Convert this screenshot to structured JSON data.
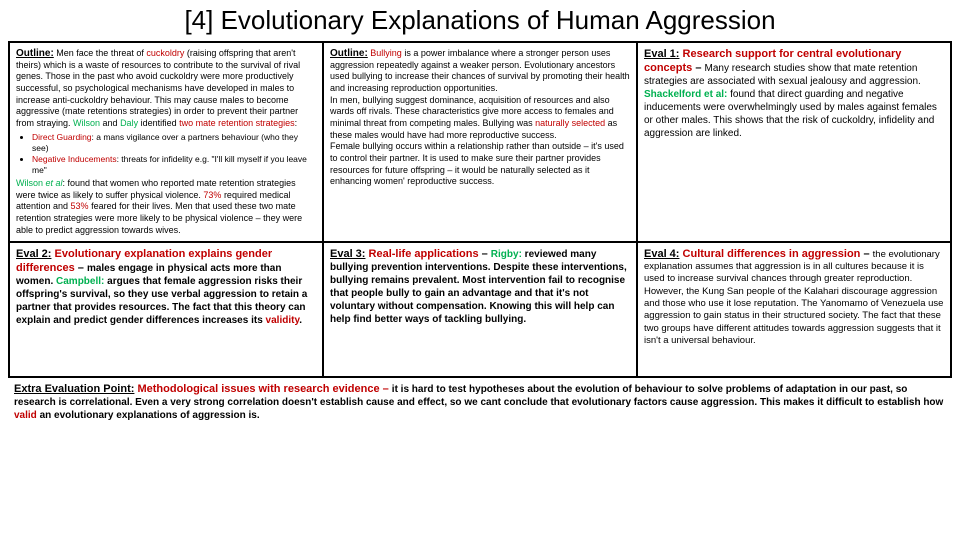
{
  "title": "[4] Evolutionary Explanations of Human Aggression",
  "cells": {
    "outline1": {
      "heading": "Outline:",
      "body_parts": [
        " Men face the threat of ",
        "cuckoldry",
        " (raising offspring that aren't theirs) which is a waste of resources to contribute to the survival of rival genes. Those in the past who avoid cuckoldry were more productively successful, so psychological mechanisms have developed in males to increase anti-cuckoldry behaviour. This may cause males to become aggressive (mate retentions strategies) in order to prevent their partner from straying. ",
        "Wilson",
        " and ",
        "Daly",
        " identified ",
        "two mate retention strategies",
        ":"
      ],
      "bullets": [
        {
          "term": "Direct Guarding",
          "rest": ": a mans vigilance over a partners behaviour (who they see)"
        },
        {
          "term": "Negative Inducements",
          "rest": ": threats for infidelity e.g. \"I'll kill myself if you leave me\""
        }
      ],
      "after_parts": [
        "Wilson ",
        "et al",
        ": found that women who reported mate retention strategies were twice as likely to suffer physical violence. ",
        "73%",
        " required medical attention and ",
        "53%",
        " feared for their lives. Men that used these two mate retention strategies were more likely to be physical violence – they were able to predict aggression towards wives."
      ]
    },
    "outline2": {
      "heading": "Outline:",
      "body_parts": [
        " ",
        "Bullying",
        " is a power imbalance where a stronger person uses aggression repeatedly against a weaker person. Evolutionary ancestors used bullying to increase their chances of survival by promoting their health and increasing reproduction opportunities.",
        "In men, bullying suggest dominance, acquisition of resources and also wards off rivals. These characteristics give more access to females and minimal threat from competing males. Bullying was ",
        "naturally selected",
        " as these males would have had more reproductive success.",
        "Female bullying occurs within a relationship rather than outside – it's used to control their partner. It is used to make sure their partner provides resources for future offspring – it would be naturally selected as it enhancing women' reproductive success."
      ]
    },
    "eval1": {
      "heading": "Eval 1:",
      "subheading_parts": [
        " ",
        "Research support for central evolutionary concepts",
        " – "
      ],
      "body_parts": [
        "Many research studies show that mate retention strategies are associated with sexual jealousy and aggression. ",
        "Shackelford et al:",
        " found that direct guarding and negative inducements were overwhelmingly used by males against females or other males. This shows that the risk of cuckoldry, infidelity and aggression are linked."
      ]
    },
    "eval2": {
      "heading": "Eval 2:",
      "subheading_parts": [
        " ",
        "Evolutionary explanation explains gender differences",
        " – "
      ],
      "body_parts": [
        "males engage in physical acts more than women. ",
        "Campbell:",
        " argues that female aggression risks their offspring's survival, so they use verbal aggression to retain a partner that provides resources. The fact that this theory can explain and predict gender differences increases its ",
        "validity",
        "."
      ]
    },
    "eval3": {
      "heading": "Eval 3:",
      "subheading_parts": [
        " ",
        "Real-life applications",
        " – "
      ],
      "body_parts": [
        "Rigby:",
        " reviewed many bullying prevention interventions. Despite these interventions, bullying remains prevalent. Most intervention fail to recognise that people bully to gain an advantage and that it's not voluntary without compensation. Knowing this will help can help find better ways of tackling bullying."
      ]
    },
    "eval4": {
      "heading": "Eval 4:",
      "subheading_parts": [
        " ",
        "Cultural differences in aggression",
        " – "
      ],
      "body": "the evolutionary explanation assumes that aggression is in all cultures because it is used to increase survival chances through greater reproduction. However, the Kung San people of the Kalahari discourage aggression and those who use it lose reputation. The Yanomamo of Venezuela use aggression to gain status in their structured society. The fact that these two groups have different attitudes towards aggression suggests that it isn't a universal behaviour."
    }
  },
  "extra": {
    "heading": "Extra Evaluation Point:",
    "subheading": " Methodological issues with research evidence – ",
    "body_parts": [
      "it is hard to test hypotheses about the evolution of behaviour to solve problems of adaptation in our past, so research is correlational. Even a very strong correlation doesn't establish cause and effect, so we cant conclude that evolutionary factors cause aggression. This makes it difficult to establish how ",
      "valid",
      " an evolutionary explanations of aggression is."
    ]
  }
}
